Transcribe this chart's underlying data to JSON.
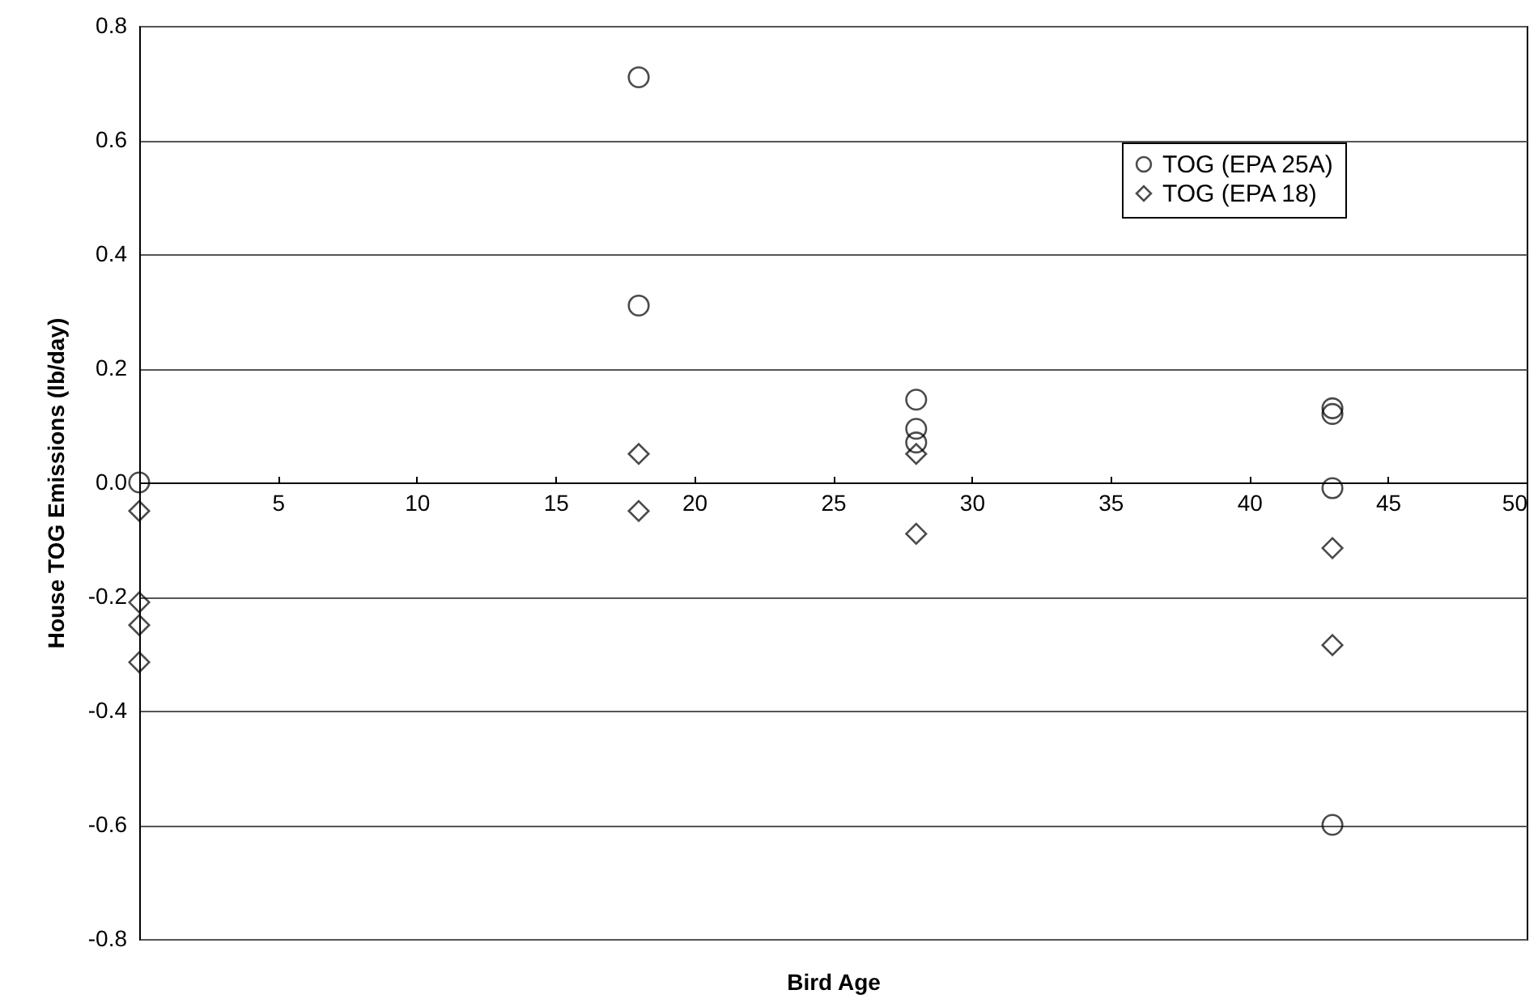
{
  "chart_data": {
    "type": "scatter",
    "xlabel": "Bird Age",
    "ylabel": "House TOG Emissions (lb/day)",
    "xlim": [
      0,
      50
    ],
    "xticks": [
      5,
      10,
      15,
      20,
      25,
      30,
      35,
      40,
      45,
      50
    ],
    "ylim": [
      -0.8,
      0.8
    ],
    "yticks": [
      {
        "value": -0.8,
        "label": "-0.8"
      },
      {
        "value": -0.6,
        "label": "-0.6"
      },
      {
        "value": -0.4,
        "label": "-0.4"
      },
      {
        "value": -0.2,
        "label": "-0.2"
      },
      {
        "value": 0,
        "label": "0.0"
      },
      {
        "value": 0.2,
        "label": "0.2"
      },
      {
        "value": 0.4,
        "label": "0.4"
      },
      {
        "value": 0.6,
        "label": "0.6"
      },
      {
        "value": 0.8,
        "label": "0.8"
      }
    ],
    "grid": "y",
    "legend": "top right",
    "series": [
      {
        "name": "TOG (EPA 25A)",
        "color": "#000000",
        "marker": "circle",
        "x": [
          0,
          18,
          18,
          28,
          28,
          28,
          43,
          43,
          43,
          43
        ],
        "values": [
          0.0,
          0.71,
          0.31,
          0.145,
          0.094,
          0.07,
          0.13,
          0.12,
          -0.01,
          -0.6
        ]
      },
      {
        "name": "TOG (EPA 18)",
        "color": "#000000",
        "marker": "diamond",
        "x": [
          0,
          0,
          0,
          0,
          18,
          18,
          28,
          28,
          43,
          43
        ],
        "values": [
          -0.05,
          -0.21,
          -0.25,
          -0.315,
          0.05,
          -0.05,
          0.05,
          -0.09,
          -0.115,
          -0.285
        ]
      }
    ]
  }
}
